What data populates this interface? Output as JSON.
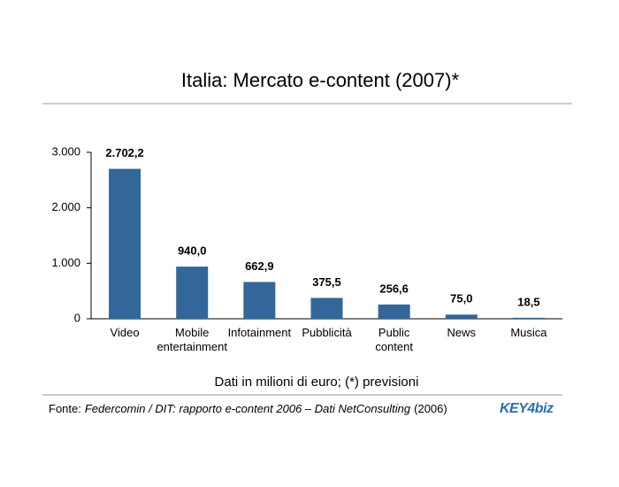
{
  "chart_data": {
    "type": "bar",
    "title": "Italia: Mercato e-content (2007)*",
    "subtitle": "Dati in milioni di euro; (*) previsioni",
    "categories": [
      "Video",
      "Mobile entertainment",
      "Infotainment",
      "Pubblicità",
      "Public content",
      "News",
      "Musica"
    ],
    "values": [
      2702.2,
      940.0,
      662.9,
      375.5,
      256.6,
      75.0,
      18.5
    ],
    "value_labels": [
      "2.702,2",
      "940,0",
      "662,9",
      "375,5",
      "256,6",
      "75,0",
      "18,5"
    ],
    "color": "#336699",
    "ylim": [
      0,
      3000
    ],
    "yticks": [
      0,
      {
        "value": 1000,
        "label": "1.000"
      },
      {
        "value": 2000,
        "label": "2.000"
      },
      {
        "value": 3000,
        "label": "3.000"
      }
    ],
    "grid": false,
    "source_prefix": "Fonte:",
    "source_italic": "Federcomin / DIT: rapporto e-content 2006 – Dati NetConsulting",
    "source_suffix": "(2006)",
    "logo": "KEY4biz"
  }
}
